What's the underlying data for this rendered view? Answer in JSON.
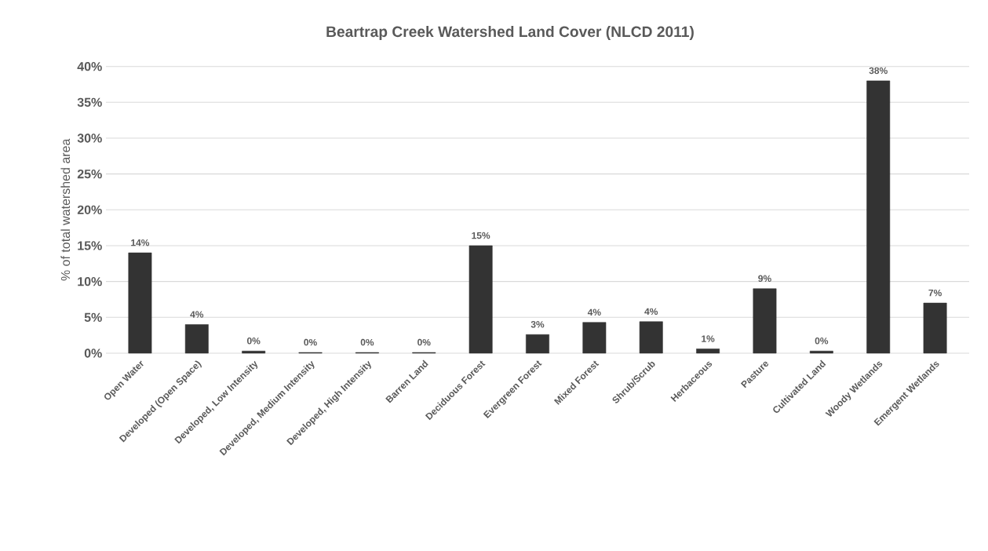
{
  "chart_data": {
    "type": "bar",
    "title": "Beartrap Creek Watershed Land Cover (NLCD 2011)",
    "ylabel": "% of total watershed area",
    "categories": [
      "Open Water",
      "Developed (Open Space)",
      "Developed, Low Intensity",
      "Developed, Medium Intensity",
      "Developed, High Intensity",
      "Barren Land",
      "Deciduous Forest",
      "Evergreen Forest",
      "Mixed Forest",
      "Shrub/Scrub",
      "Herbaceous",
      "Pasture",
      "Cultivated Land",
      "Woody Wetlands",
      "Emergent Wetlands"
    ],
    "values": [
      14,
      4,
      0.3,
      0.1,
      0.1,
      0.1,
      15,
      2.6,
      4.3,
      4.4,
      0.6,
      9,
      0.3,
      38,
      7
    ],
    "value_labels": [
      "14%",
      "4%",
      "0%",
      "0%",
      "0%",
      "0%",
      "15%",
      "3%",
      "4%",
      "4%",
      "1%",
      "9%",
      "0%",
      "38%",
      "7%"
    ],
    "color": "#333333",
    "ylim": [
      0,
      40
    ],
    "yticks": [
      {
        "value": 0,
        "label": "0%"
      },
      {
        "value": 5,
        "label": "5%"
      },
      {
        "value": 10,
        "label": "10%"
      },
      {
        "value": 15,
        "label": "15%"
      },
      {
        "value": 20,
        "label": "20%"
      },
      {
        "value": 25,
        "label": "25%"
      },
      {
        "value": 30,
        "label": "30%"
      },
      {
        "value": 35,
        "label": "35%"
      },
      {
        "value": 40,
        "label": "40%"
      }
    ],
    "grid": "y"
  }
}
